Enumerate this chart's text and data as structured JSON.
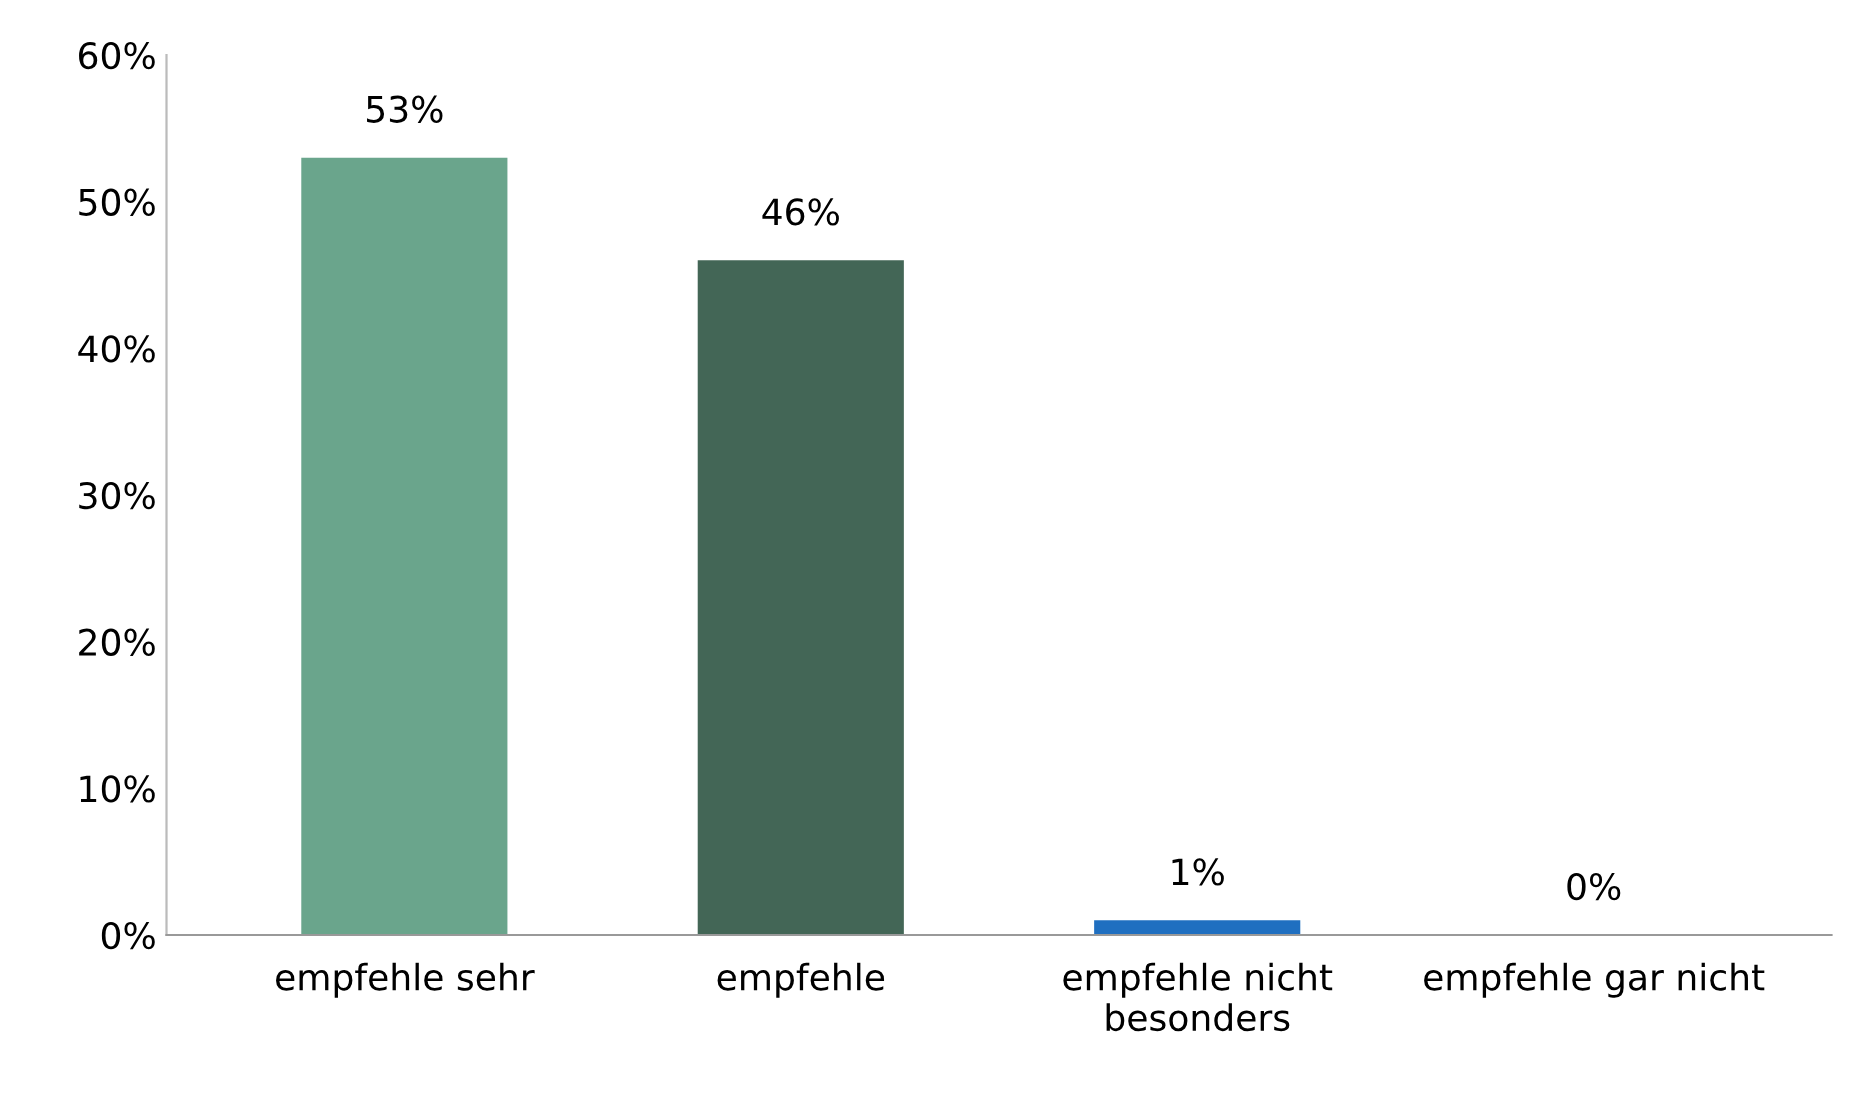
{
  "chart_data": {
    "type": "bar",
    "categories": [
      "empfehle sehr",
      "empfehle",
      "empfehle nicht besonders",
      "empfehle gar nicht"
    ],
    "values": [
      53,
      46,
      1,
      0
    ],
    "colors": [
      "#6aa58c",
      "#436656",
      "#1f6fc0",
      "#1f6fc0"
    ],
    "value_labels": [
      "53%",
      "46%",
      "1%",
      "0%"
    ],
    "ylim": [
      0,
      60
    ],
    "yticks": [
      {
        "value": 0,
        "label": "0%"
      },
      {
        "value": 10,
        "label": "10%"
      },
      {
        "value": 20,
        "label": "20%"
      },
      {
        "value": 30,
        "label": "30%"
      },
      {
        "value": 40,
        "label": "40%"
      },
      {
        "value": 50,
        "label": "50%"
      },
      {
        "value": 60,
        "label": "60%"
      }
    ],
    "grid": false,
    "legend": false
  }
}
